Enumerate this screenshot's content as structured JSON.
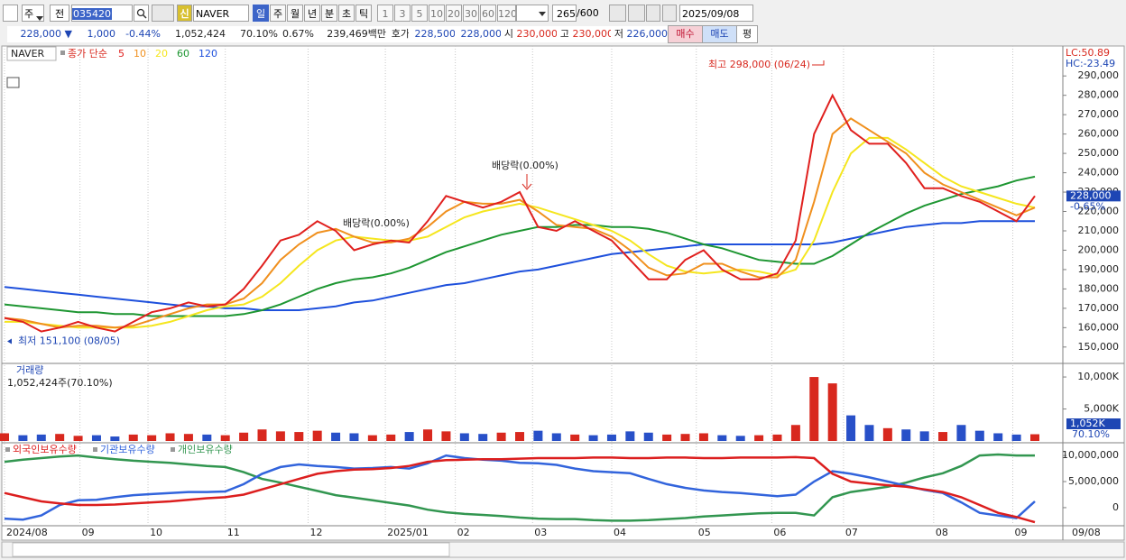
{
  "toolbar": {
    "selectors": [
      "주",
      "전"
    ],
    "code": "035420",
    "badge": "신",
    "name": "NAVER",
    "periods": [
      "일",
      "주",
      "월",
      "년",
      "분",
      "초",
      "틱"
    ],
    "intervals": [
      "1",
      "3",
      "5",
      "10",
      "20",
      "30",
      "60",
      "120"
    ],
    "count": "265",
    "max": "/600",
    "date": "2025/09/08"
  },
  "info_bar": {
    "items": [
      "228,000 ▼",
      "1,000",
      "-0.44%",
      "1,052,424",
      "70.10%",
      "0.67%",
      "239,469백만",
      "호가",
      "228,500",
      "228,000",
      "시",
      "230,000",
      "고",
      "230,000",
      "저",
      "226,000"
    ],
    "buttons": [
      "매수",
      "매도",
      "평"
    ]
  },
  "chart_data": [
    {
      "type": "line",
      "title": "NAVER",
      "subtitle": "종가 단순",
      "grid": true,
      "xlim": [
        0,
        56
      ],
      "xticks": [
        {
          "value": 0,
          "label": "2024/08"
        },
        {
          "value": 4.1,
          "label": "09"
        },
        {
          "value": 7.8,
          "label": "10"
        },
        {
          "value": 12.0,
          "label": "11"
        },
        {
          "value": 16.5,
          "label": "12"
        },
        {
          "value": 20.7,
          "label": "2025/01"
        },
        {
          "value": 24.5,
          "label": "02"
        },
        {
          "value": 28.7,
          "label": "03"
        },
        {
          "value": 33.0,
          "label": "04"
        },
        {
          "value": 37.6,
          "label": "05"
        },
        {
          "value": 41.7,
          "label": "06"
        },
        {
          "value": 45.6,
          "label": "07"
        },
        {
          "value": 50.5,
          "label": "08"
        },
        {
          "value": 54.8,
          "label": "09"
        }
      ],
      "x_end_label": "09/08",
      "ylim": [
        142000,
        305000
      ],
      "yticks": [
        {
          "value": 150000,
          "label": "150,000"
        },
        {
          "value": 160000,
          "label": "160,000"
        },
        {
          "value": 170000,
          "label": "170,000"
        },
        {
          "value": 180000,
          "label": "180,000"
        },
        {
          "value": 190000,
          "label": "190,000"
        },
        {
          "value": 200000,
          "label": "200,000"
        },
        {
          "value": 210000,
          "label": "210,000"
        },
        {
          "value": 220000,
          "label": "220,000"
        },
        {
          "value": 230000,
          "label": "230,000"
        },
        {
          "value": 240000,
          "label": "240,000"
        },
        {
          "value": 250000,
          "label": "250,000"
        },
        {
          "value": 260000,
          "label": "260,000"
        },
        {
          "value": 270000,
          "label": "270,000"
        },
        {
          "value": 280000,
          "label": "280,000"
        },
        {
          "value": 290000,
          "label": "290,000"
        }
      ],
      "series": [
        {
          "name": "5",
          "color": "#e0201e",
          "values": [
            165000,
            163000,
            158000,
            160000,
            163000,
            160000,
            158000,
            163000,
            168000,
            170000,
            173000,
            171000,
            172000,
            180000,
            192000,
            205000,
            208000,
            215000,
            210000,
            200000,
            203000,
            205000,
            204000,
            215000,
            228000,
            225000,
            222000,
            225000,
            230000,
            212000,
            210000,
            215000,
            210000,
            205000,
            195000,
            185000,
            185000,
            195000,
            200000,
            190000,
            185000,
            185000,
            188000,
            205000,
            260000,
            280000,
            262000,
            255000,
            255000,
            245000,
            232000,
            232000,
            228000,
            225000,
            220000,
            215000,
            228000
          ]
        },
        {
          "name": "10",
          "color": "#f0901e",
          "values": [
            165000,
            164000,
            162000,
            160000,
            161000,
            161000,
            160000,
            161000,
            164000,
            167000,
            170000,
            172000,
            172000,
            175000,
            183000,
            195000,
            203000,
            209000,
            211000,
            207000,
            204000,
            204000,
            206000,
            212000,
            220000,
            225000,
            224000,
            224000,
            226000,
            220000,
            213000,
            212000,
            211000,
            207000,
            200000,
            191000,
            187000,
            188000,
            193000,
            193000,
            189000,
            186000,
            186000,
            195000,
            225000,
            260000,
            268000,
            262000,
            256000,
            250000,
            240000,
            234000,
            230000,
            226000,
            222000,
            218000,
            222000
          ]
        },
        {
          "name": "20",
          "color": "#f5e61e",
          "values": [
            163000,
            163000,
            162000,
            161000,
            160000,
            160000,
            160000,
            160000,
            161000,
            163000,
            166000,
            169000,
            171000,
            172000,
            176000,
            183000,
            192000,
            200000,
            205000,
            207000,
            206000,
            205000,
            205000,
            207000,
            212000,
            217000,
            220000,
            222000,
            224000,
            222000,
            219000,
            216000,
            213000,
            210000,
            205000,
            198000,
            192000,
            189000,
            188000,
            189000,
            190000,
            189000,
            187000,
            190000,
            205000,
            230000,
            250000,
            258000,
            258000,
            252000,
            245000,
            238000,
            233000,
            230000,
            227000,
            224000,
            222000
          ]
        },
        {
          "name": "60",
          "color": "#1e9632",
          "values": [
            172000,
            171000,
            170000,
            169000,
            168000,
            168000,
            167000,
            167000,
            166000,
            166000,
            166000,
            166000,
            166000,
            167000,
            169000,
            172000,
            176000,
            180000,
            183000,
            185000,
            186000,
            188000,
            191000,
            195000,
            199000,
            202000,
            205000,
            208000,
            210000,
            212000,
            212000,
            213000,
            213000,
            212000,
            212000,
            211000,
            209000,
            206000,
            203000,
            201000,
            198000,
            195000,
            194000,
            193000,
            193000,
            197000,
            203000,
            209000,
            214000,
            219000,
            223000,
            226000,
            229000,
            231000,
            233000,
            236000,
            238000
          ]
        },
        {
          "name": "120",
          "color": "#1e50dc",
          "values": [
            181000,
            180000,
            179000,
            178000,
            177000,
            176000,
            175000,
            174000,
            173000,
            172000,
            171000,
            171000,
            170000,
            170000,
            169000,
            169000,
            169000,
            170000,
            171000,
            173000,
            174000,
            176000,
            178000,
            180000,
            182000,
            183000,
            185000,
            187000,
            189000,
            190000,
            192000,
            194000,
            196000,
            198000,
            199000,
            200000,
            201000,
            202000,
            203000,
            203000,
            203000,
            203000,
            203000,
            203000,
            203000,
            204000,
            206000,
            208000,
            210000,
            212000,
            213000,
            214000,
            214000,
            215000,
            215000,
            215000,
            215000
          ]
        }
      ],
      "high": {
        "value": 298000,
        "label": "최고 298,000 (06/24)"
      },
      "low": {
        "value": 151100,
        "label": "최저 151,100 (08/05)"
      },
      "notes": [
        "배당락(0.00%)",
        "배당락(0.00%)"
      ],
      "lc": "LC:50.89",
      "hc": "HC:-23.49",
      "last": {
        "value": 228000,
        "label": "228,000"
      },
      "change": "-0.65%"
    },
    {
      "type": "bar",
      "title": "거래량",
      "subtitle": "1,052,424주(70.10%)",
      "colors": {
        "up": "#d8281e",
        "down": "#2850c8"
      },
      "ylim": [
        0,
        11700
      ],
      "yticks": [
        {
          "value": 5000,
          "label": "5,000K"
        },
        {
          "value": 10000,
          "label": "10,000K"
        }
      ],
      "values": [
        1200,
        900,
        1000,
        1100,
        800,
        900,
        700,
        1000,
        900,
        1200,
        1100,
        1000,
        900,
        1300,
        1800,
        1500,
        1400,
        1600,
        1300,
        1200,
        900,
        1000,
        1400,
        1800,
        1500,
        1200,
        1100,
        1300,
        1400,
        1600,
        1200,
        1000,
        900,
        1000,
        1500,
        1300,
        1000,
        1100,
        1200,
        900,
        800,
        900,
        1000,
        2500,
        10000,
        9000,
        4000,
        2500,
        2000,
        1800,
        1500,
        1400,
        2500,
        1600,
        1200,
        1000,
        1052
      ],
      "last": {
        "value": 1052,
        "label": "1,052K"
      },
      "ratio": "70.10%"
    },
    {
      "type": "line",
      "ylim": [
        -3300000.0,
        12100000.0
      ],
      "yticks": [
        0,
        {
          "value": 5000000.0,
          "label": "5,000,000"
        },
        {
          "value": 10000000.0,
          "label": "10,000,000"
        }
      ],
      "series": [
        {
          "name": "외국인보유수량",
          "color": "#dc1e1e",
          "values": [
            2800000.0,
            2000000.0,
            1200000.0,
            800000.0,
            500000.0,
            500000.0,
            600000.0,
            800000.0,
            1000000.0,
            1200000.0,
            1500000.0,
            1800000.0,
            2000000.0,
            2500000.0,
            3500000.0,
            4500000.0,
            5500000.0,
            6500000.0,
            7000000.0,
            7300000.0,
            7400000.0,
            7600000.0,
            8000000.0,
            8800000.0,
            9100000.0,
            9200000.0,
            9300000.0,
            9300000.0,
            9400000.0,
            9500000.0,
            9500000.0,
            9500000.0,
            9600000.0,
            9600000.0,
            9500000.0,
            9500000.0,
            9600000.0,
            9600000.0,
            9500000.0,
            9500000.0,
            9600000.0,
            9600000.0,
            9600000.0,
            9700000.0,
            9500000.0,
            6500000.0,
            5000000.0,
            4600000.0,
            4300000.0,
            4000000.0,
            3500000.0,
            3000000.0,
            2000000.0,
            500000.0,
            -1000000.0,
            -1800000.0,
            -2800000.0
          ]
        },
        {
          "name": "기관보유수량",
          "color": "#3264dc",
          "values": [
            -2100000.0,
            -2300000.0,
            -1500000.0,
            500000.0,
            1400000.0,
            1500000.0,
            2000000.0,
            2400000.0,
            2600000.0,
            2800000.0,
            3000000.0,
            3000000.0,
            3100000.0,
            4500000.0,
            6500000.0,
            7800000.0,
            8300000.0,
            8000000.0,
            7800000.0,
            7500000.0,
            7600000.0,
            7800000.0,
            7500000.0,
            8500000.0,
            10000000.0,
            9500000.0,
            9200000.0,
            9000000.0,
            8600000.0,
            8500000.0,
            8200000.0,
            7500000.0,
            7000000.0,
            6800000.0,
            6600000.0,
            5500000.0,
            4500000.0,
            3800000.0,
            3300000.0,
            3000000.0,
            2800000.0,
            2500000.0,
            2200000.0,
            2500000.0,
            5000000.0,
            7000000.0,
            6500000.0,
            5800000.0,
            5000000.0,
            4200000.0,
            3400000.0,
            2800000.0,
            1000000.0,
            -1000000.0,
            -1500000.0,
            -2000000.0,
            1200000.0
          ]
        },
        {
          "name": "개인보유수량",
          "color": "#329650",
          "values": [
            8800000.0,
            9200000.0,
            9500000.0,
            9800000.0,
            10000000.0,
            9600000.0,
            9300000.0,
            9000000.0,
            8800000.0,
            8600000.0,
            8300000.0,
            8000000.0,
            7800000.0,
            6800000.0,
            5500000.0,
            4800000.0,
            4000000.0,
            3200000.0,
            2400000.0,
            1900000.0,
            1400000.0,
            900000.0,
            400000.0,
            -400000.0,
            -900000.0,
            -1200000.0,
            -1400000.0,
            -1600000.0,
            -1900000.0,
            -2100000.0,
            -2200000.0,
            -2200000.0,
            -2400000.0,
            -2500000.0,
            -2500000.0,
            -2400000.0,
            -2200000.0,
            -2000000.0,
            -1700000.0,
            -1500000.0,
            -1300000.0,
            -1100000.0,
            -1000000.0,
            -1000000.0,
            -1500000.0,
            2000000.0,
            3000000.0,
            3500000.0,
            4000000.0,
            4800000.0,
            5800000.0,
            6600000.0,
            8000000.0,
            10000000.0,
            10200000.0,
            10000000.0,
            10000000.0
          ]
        }
      ]
    }
  ]
}
